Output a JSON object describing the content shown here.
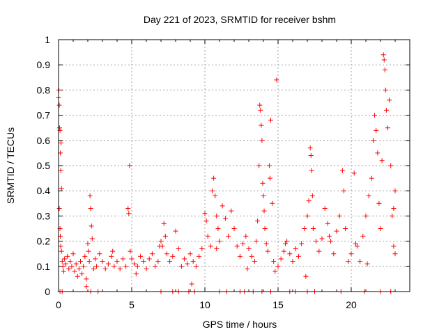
{
  "chart_data": {
    "type": "scatter",
    "title": "Day 221 of 2023, SRMTID for receiver bshm",
    "xlabel": "GPS time / hours",
    "ylabel": "SRMTID / TECUs",
    "xlim": [
      0,
      24
    ],
    "ylim": [
      0,
      1
    ],
    "xticks": [
      "0",
      "5",
      "10",
      "15",
      "20"
    ],
    "yticks": [
      "0",
      "0.1",
      "0.2",
      "0.3",
      "0.4",
      "0.5",
      "0.6",
      "0.7",
      "0.8",
      "0.9",
      "1"
    ],
    "grid": true,
    "marker": "+",
    "color": "#ff0000",
    "series": [
      {
        "name": "SRMTID",
        "points": [
          [
            0.0,
            0.77
          ],
          [
            0.02,
            0.8
          ],
          [
            0.05,
            0.74
          ],
          [
            0.07,
            0.65
          ],
          [
            0.1,
            0.64
          ],
          [
            0.12,
            0.55
          ],
          [
            0.15,
            0.48
          ],
          [
            0.17,
            0.59
          ],
          [
            0.2,
            0.41
          ],
          [
            0.05,
            0.33
          ],
          [
            0.1,
            0.25
          ],
          [
            0.12,
            0.22
          ],
          [
            0.15,
            0.18
          ],
          [
            0.2,
            0.16
          ],
          [
            0.25,
            0.12
          ],
          [
            0.3,
            0.1
          ],
          [
            0.35,
            0.08
          ],
          [
            0.4,
            0.13
          ],
          [
            0.5,
            0.11
          ],
          [
            0.6,
            0.14
          ],
          [
            0.7,
            0.09
          ],
          [
            0.8,
            0.12
          ],
          [
            0.9,
            0.1
          ],
          [
            1.0,
            0.15
          ],
          [
            1.1,
            0.08
          ],
          [
            1.2,
            0.11
          ],
          [
            1.3,
            0.06
          ],
          [
            1.4,
            0.09
          ],
          [
            1.5,
            0.12
          ],
          [
            1.6,
            0.07
          ],
          [
            1.7,
            0.1
          ],
          [
            1.8,
            0.14
          ],
          [
            1.9,
            0.05
          ],
          [
            2.0,
            0.19
          ],
          [
            2.05,
            0.16
          ],
          [
            2.1,
            0.12
          ],
          [
            2.15,
            0.38
          ],
          [
            2.2,
            0.33
          ],
          [
            2.25,
            0.26
          ],
          [
            2.3,
            0.21
          ],
          [
            2.4,
            0.09
          ],
          [
            2.5,
            0.13
          ],
          [
            2.6,
            0.1
          ],
          [
            2.8,
            0.15
          ],
          [
            3.0,
            0.12
          ],
          [
            3.2,
            0.09
          ],
          [
            3.4,
            0.11
          ],
          [
            3.6,
            0.14
          ],
          [
            3.8,
            0.1
          ],
          [
            4.0,
            0.12
          ],
          [
            4.2,
            0.09
          ],
          [
            4.4,
            0.13
          ],
          [
            4.6,
            0.1
          ],
          [
            4.75,
            0.33
          ],
          [
            4.8,
            0.31
          ],
          [
            4.85,
            0.5
          ],
          [
            4.9,
            0.16
          ],
          [
            5.0,
            0.13
          ],
          [
            5.2,
            0.11
          ],
          [
            5.4,
            0.1
          ],
          [
            5.6,
            0.14
          ],
          [
            5.8,
            0.12
          ],
          [
            6.0,
            0.09
          ],
          [
            6.2,
            0.13
          ],
          [
            6.4,
            0.15
          ],
          [
            6.6,
            0.1
          ],
          [
            6.8,
            0.12
          ],
          [
            7.0,
            0.2
          ],
          [
            7.1,
            0.18
          ],
          [
            7.2,
            0.27
          ],
          [
            7.3,
            0.22
          ],
          [
            7.4,
            0.15
          ],
          [
            7.6,
            0.12
          ],
          [
            7.8,
            0.14
          ],
          [
            8.0,
            0.24
          ],
          [
            8.2,
            0.17
          ],
          [
            8.4,
            0.1
          ],
          [
            8.6,
            0.13
          ],
          [
            8.8,
            0.11
          ],
          [
            9.0,
            0.15
          ],
          [
            9.2,
            0.12
          ],
          [
            9.4,
            0.1
          ],
          [
            9.6,
            0.14
          ],
          [
            9.8,
            0.17
          ],
          [
            10.0,
            0.31
          ],
          [
            10.1,
            0.28
          ],
          [
            10.2,
            0.22
          ],
          [
            10.4,
            0.18
          ],
          [
            10.5,
            0.4
          ],
          [
            10.6,
            0.45
          ],
          [
            10.7,
            0.38
          ],
          [
            10.8,
            0.3
          ],
          [
            10.9,
            0.25
          ],
          [
            11.0,
            0.2
          ],
          [
            11.2,
            0.34
          ],
          [
            11.4,
            0.29
          ],
          [
            11.6,
            0.22
          ],
          [
            11.8,
            0.32
          ],
          [
            12.0,
            0.25
          ],
          [
            12.2,
            0.18
          ],
          [
            12.4,
            0.14
          ],
          [
            12.6,
            0.19
          ],
          [
            12.8,
            0.22
          ],
          [
            13.0,
            0.17
          ],
          [
            13.2,
            0.14
          ],
          [
            13.4,
            0.12
          ],
          [
            13.5,
            0.2
          ],
          [
            13.6,
            0.28
          ],
          [
            13.7,
            0.5
          ],
          [
            13.75,
            0.74
          ],
          [
            13.8,
            0.72
          ],
          [
            13.85,
            0.66
          ],
          [
            13.9,
            0.6
          ],
          [
            13.95,
            0.43
          ],
          [
            14.0,
            0.38
          ],
          [
            14.05,
            0.32
          ],
          [
            14.1,
            0.25
          ],
          [
            14.2,
            0.19
          ],
          [
            14.3,
            0.16
          ],
          [
            14.4,
            0.5
          ],
          [
            14.45,
            0.45
          ],
          [
            14.5,
            0.68
          ],
          [
            14.6,
            0.35
          ],
          [
            14.7,
            0.12
          ],
          [
            14.8,
            0.08
          ],
          [
            14.9,
            0.84
          ],
          [
            15.0,
            0.1
          ],
          [
            15.2,
            0.13
          ],
          [
            15.4,
            0.16
          ],
          [
            15.6,
            0.2
          ],
          [
            15.8,
            0.15
          ],
          [
            16.0,
            0.12
          ],
          [
            16.2,
            0.17
          ],
          [
            16.4,
            0.14
          ],
          [
            16.6,
            0.19
          ],
          [
            16.8,
            0.25
          ],
          [
            17.0,
            0.3
          ],
          [
            17.1,
            0.36
          ],
          [
            17.2,
            0.57
          ],
          [
            17.25,
            0.54
          ],
          [
            17.3,
            0.48
          ],
          [
            17.35,
            0.38
          ],
          [
            17.4,
            0.25
          ],
          [
            17.6,
            0.2
          ],
          [
            17.8,
            0.16
          ],
          [
            18.0,
            0.21
          ],
          [
            18.2,
            0.33
          ],
          [
            18.4,
            0.27
          ],
          [
            18.6,
            0.2
          ],
          [
            18.8,
            0.15
          ],
          [
            19.0,
            0.24
          ],
          [
            19.2,
            0.3
          ],
          [
            19.4,
            0.48
          ],
          [
            19.5,
            0.4
          ],
          [
            19.6,
            0.25
          ],
          [
            19.8,
            0.12
          ],
          [
            20.0,
            0.15
          ],
          [
            20.2,
            0.47
          ],
          [
            20.4,
            0.18
          ],
          [
            20.6,
            0.12
          ],
          [
            20.8,
            0.22
          ],
          [
            21.0,
            0.3
          ],
          [
            21.2,
            0.38
          ],
          [
            21.4,
            0.45
          ],
          [
            21.5,
            0.6
          ],
          [
            21.6,
            0.7
          ],
          [
            21.7,
            0.64
          ],
          [
            21.8,
            0.55
          ],
          [
            21.9,
            0.35
          ],
          [
            22.0,
            0.25
          ],
          [
            22.1,
            0.52
          ],
          [
            22.2,
            0.94
          ],
          [
            22.25,
            0.92
          ],
          [
            22.3,
            0.88
          ],
          [
            22.35,
            0.8
          ],
          [
            22.4,
            0.72
          ],
          [
            22.5,
            0.65
          ],
          [
            22.6,
            0.76
          ],
          [
            22.7,
            0.5
          ],
          [
            22.8,
            0.3
          ],
          [
            22.9,
            0.18
          ],
          [
            23.0,
            0.15
          ],
          [
            0.1,
            0.0
          ],
          [
            0.25,
            0.0
          ],
          [
            2.2,
            0.0
          ],
          [
            2.7,
            0.0
          ],
          [
            7.0,
            0.0
          ],
          [
            7.8,
            0.0
          ],
          [
            8.2,
            0.0
          ],
          [
            8.9,
            0.0
          ],
          [
            9.3,
            0.0
          ],
          [
            11.0,
            0.0
          ],
          [
            11.5,
            0.0
          ],
          [
            12.4,
            0.0
          ],
          [
            12.7,
            0.0
          ],
          [
            13.3,
            0.0
          ],
          [
            13.9,
            0.0
          ],
          [
            14.5,
            0.0
          ],
          [
            15.8,
            0.0
          ],
          [
            16.2,
            0.0
          ],
          [
            17.0,
            0.0
          ],
          [
            17.5,
            0.0
          ],
          [
            19.3,
            0.0
          ],
          [
            20.9,
            0.0
          ],
          [
            22.0,
            0.0
          ],
          [
            22.7,
            0.0
          ],
          [
            1.9,
            0.02
          ],
          [
            9.1,
            0.03
          ],
          [
            5.3,
            0.07
          ],
          [
            16.9,
            0.06
          ],
          [
            12.9,
            0.09
          ],
          [
            3.7,
            0.16
          ],
          [
            6.9,
            0.18
          ],
          [
            10.8,
            0.17
          ],
          [
            15.5,
            0.19
          ],
          [
            18.5,
            0.22
          ],
          [
            20.3,
            0.19
          ],
          [
            21.1,
            0.11
          ],
          [
            23.0,
            0.4
          ],
          [
            22.9,
            0.33
          ]
        ]
      }
    ]
  }
}
